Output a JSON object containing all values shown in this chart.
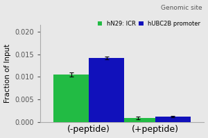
{
  "title": "Genomic site",
  "ylabel": "Fraction of Input",
  "groups": [
    "(-peptide)",
    "(+peptide)"
  ],
  "series": [
    {
      "label": "hN29: ICR",
      "color": "#22bb44",
      "values": [
        0.01045,
        0.00085
      ],
      "errors": [
        0.00045,
        0.00025
      ]
    },
    {
      "label": "hUBC2B promoter",
      "color": "#1111bb",
      "values": [
        0.01415,
        0.00115
      ],
      "errors": [
        0.00035,
        0.0002
      ]
    }
  ],
  "ylim": [
    0,
    0.0215
  ],
  "yticks": [
    0.0,
    0.005,
    0.01,
    0.015,
    0.02
  ],
  "bar_width": 0.18,
  "background_color": "#e8e8e8",
  "title_fontsize": 6.5,
  "label_fontsize": 7.5,
  "tick_fontsize": 7,
  "legend_fontsize": 6,
  "xlabel_fontsize": 9
}
